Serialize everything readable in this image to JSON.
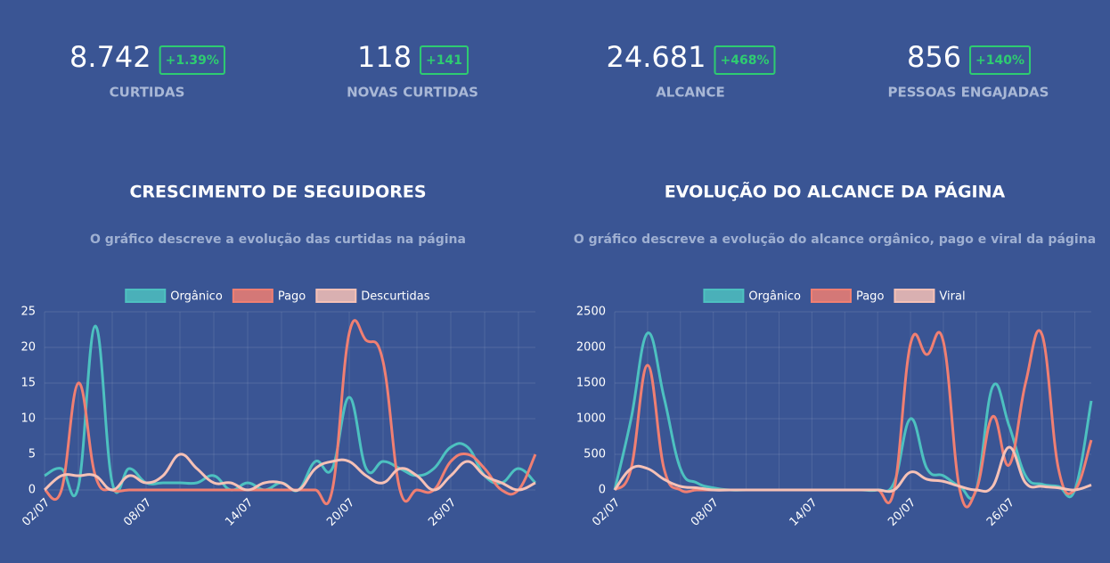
{
  "kpis": [
    {
      "value": "8.742",
      "change": "+1.39%",
      "label": "CURTIDAS"
    },
    {
      "value": "118",
      "change": "+141",
      "label": "NOVAS CURTIDAS"
    },
    {
      "value": "24.681",
      "change": "+468%",
      "label": "ALCANCE"
    },
    {
      "value": "856",
      "change": "+140%",
      "label": "PESSOAS ENGAJADAS"
    }
  ],
  "chart_data": [
    {
      "type": "line",
      "title": "CRESCIMENTO DE SEGUIDORES",
      "subtitle": "O gráfico descreve a evolução das curtidas na página",
      "categories": [
        "02/07",
        null,
        null,
        null,
        null,
        null,
        "08/07",
        null,
        null,
        null,
        null,
        null,
        "14/07",
        null,
        null,
        null,
        null,
        null,
        "20/07",
        null,
        null,
        null,
        null,
        null,
        "26/07",
        null,
        null,
        null,
        null,
        null
      ],
      "series": [
        {
          "name": "Orgânico",
          "color": "#4dc1c0",
          "values": [
            2,
            3,
            0.5,
            23,
            1,
            3,
            1,
            1,
            1,
            1,
            2,
            0,
            1,
            0,
            1,
            0,
            4,
            3,
            13,
            3,
            4,
            3,
            2,
            3,
            6,
            6,
            2,
            1,
            3,
            1
          ]
        },
        {
          "name": "Pago",
          "color": "#f07f72",
          "values": [
            0,
            0,
            15,
            2,
            0,
            0,
            0,
            0,
            0,
            0,
            0,
            0,
            0,
            0,
            0,
            0,
            0,
            0,
            22,
            21,
            18,
            0,
            0,
            0,
            4,
            5,
            3,
            0,
            0,
            5
          ]
        },
        {
          "name": "Descurtidas",
          "color": "#f6c1b6",
          "values": [
            0,
            2,
            2,
            2,
            0,
            2,
            1,
            2,
            5,
            3,
            1,
            1,
            0,
            1,
            1,
            0,
            3,
            4,
            4,
            2,
            1,
            3,
            2,
            0,
            2,
            4,
            2,
            1,
            0,
            1
          ]
        }
      ],
      "ylim": [
        0,
        25
      ],
      "yticks": [
        0,
        5,
        10,
        15,
        20,
        25
      ],
      "grid": true,
      "legend": "top"
    },
    {
      "type": "line",
      "title": "EVOLUÇÃO DO ALCANCE DA PÁGINA",
      "subtitle": "O gráfico descreve a evolução do alcance orgânico, pago e viral da página",
      "categories": [
        "02/07",
        null,
        null,
        null,
        null,
        null,
        "08/07",
        null,
        null,
        null,
        null,
        null,
        "14/07",
        null,
        null,
        null,
        null,
        null,
        "20/07",
        null,
        null,
        null,
        null,
        null,
        "26/07",
        null,
        null,
        null,
        null,
        null
      ],
      "series": [
        {
          "name": "Orgânico",
          "color": "#4dc1c0",
          "values": [
            0,
            1000,
            2200,
            1300,
            300,
            100,
            30,
            0,
            0,
            0,
            0,
            0,
            0,
            0,
            0,
            0,
            0,
            100,
            1000,
            300,
            200,
            50,
            0,
            1450,
            900,
            200,
            80,
            50,
            0,
            1250
          ]
        },
        {
          "name": "Pago",
          "color": "#f07f72",
          "values": [
            0,
            300,
            1750,
            300,
            0,
            0,
            0,
            0,
            0,
            0,
            0,
            0,
            0,
            0,
            0,
            0,
            0,
            0,
            2050,
            1900,
            2080,
            0,
            0,
            1030,
            350,
            1500,
            2180,
            300,
            0,
            700
          ]
        },
        {
          "name": "Viral",
          "color": "#f6c1b6",
          "values": [
            0,
            300,
            300,
            150,
            50,
            30,
            0,
            0,
            0,
            0,
            0,
            0,
            0,
            0,
            0,
            0,
            0,
            0,
            250,
            150,
            120,
            50,
            0,
            50,
            600,
            100,
            50,
            30,
            0,
            70
          ]
        }
      ],
      "ylim": [
        0,
        2500
      ],
      "yticks": [
        0,
        500,
        1000,
        1500,
        2000,
        2500
      ],
      "grid": true,
      "legend": "top"
    }
  ]
}
